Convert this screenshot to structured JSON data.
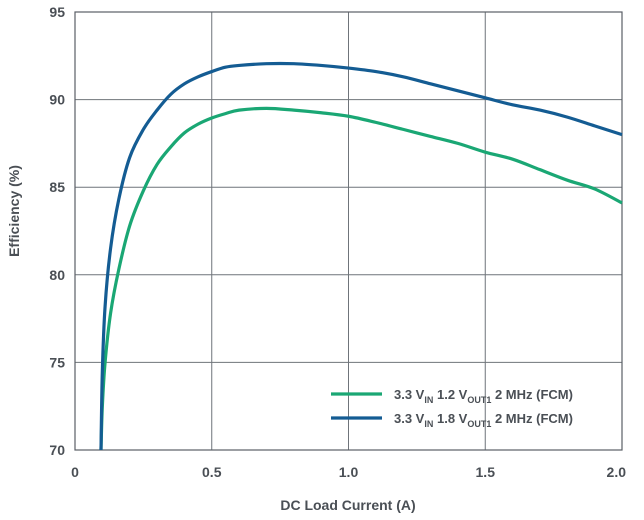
{
  "chart_data": {
    "type": "line",
    "xlabel": "DC Load Current (A)",
    "ylabel": "Efficiency (%)",
    "xlim": [
      0,
      2.0
    ],
    "ylim": [
      70,
      95
    ],
    "xticks": [
      0,
      0.5,
      1.0,
      1.5,
      2.0
    ],
    "xtick_labels": [
      "0",
      "0.5",
      "1.0",
      "1.5",
      "2.0"
    ],
    "yticks": [
      70,
      75,
      80,
      85,
      90,
      95
    ],
    "ytick_labels": [
      "70",
      "75",
      "80",
      "85",
      "90",
      "95"
    ],
    "grid": true,
    "legend_position": "bottom-right",
    "series": [
      {
        "name": "3.3 VIN 1.2 VOUT1 2 MHz (FCM)",
        "legend_parts": [
          "3.3 V",
          "IN",
          " 1.2 V",
          "OUT1",
          " 2 MHz (FCM)"
        ],
        "color": "#1aa774",
        "x": [
          0.095,
          0.1,
          0.11,
          0.13,
          0.16,
          0.2,
          0.25,
          0.3,
          0.35,
          0.4,
          0.45,
          0.5,
          0.55,
          0.6,
          0.7,
          0.8,
          0.9,
          1.0,
          1.1,
          1.2,
          1.3,
          1.4,
          1.5,
          1.6,
          1.7,
          1.8,
          1.9,
          2.0
        ],
        "y": [
          70.0,
          72.5,
          75.0,
          77.8,
          80.3,
          82.8,
          84.8,
          86.3,
          87.3,
          88.1,
          88.6,
          88.95,
          89.2,
          89.4,
          89.5,
          89.4,
          89.25,
          89.05,
          88.7,
          88.3,
          87.9,
          87.5,
          87.0,
          86.6,
          86.0,
          85.4,
          84.9,
          84.1
        ]
      },
      {
        "name": "3.3 VIN 1.8 VOUT1 2 MHz (FCM)",
        "legend_parts": [
          "3.3 V",
          "IN",
          " 1.8 V",
          "OUT1",
          " 2 MHz (FCM)"
        ],
        "color": "#145c93",
        "x": [
          0.095,
          0.1,
          0.11,
          0.13,
          0.16,
          0.2,
          0.25,
          0.3,
          0.35,
          0.4,
          0.45,
          0.5,
          0.55,
          0.6,
          0.7,
          0.8,
          0.9,
          1.0,
          1.1,
          1.2,
          1.3,
          1.4,
          1.5,
          1.6,
          1.7,
          1.8,
          1.9,
          2.0
        ],
        "y": [
          70.0,
          74.5,
          78.2,
          81.5,
          84.3,
          86.7,
          88.3,
          89.4,
          90.3,
          90.9,
          91.3,
          91.6,
          91.85,
          91.95,
          92.05,
          92.05,
          91.95,
          91.8,
          91.6,
          91.3,
          90.9,
          90.5,
          90.1,
          89.7,
          89.4,
          89.0,
          88.5,
          88.0
        ]
      }
    ]
  }
}
